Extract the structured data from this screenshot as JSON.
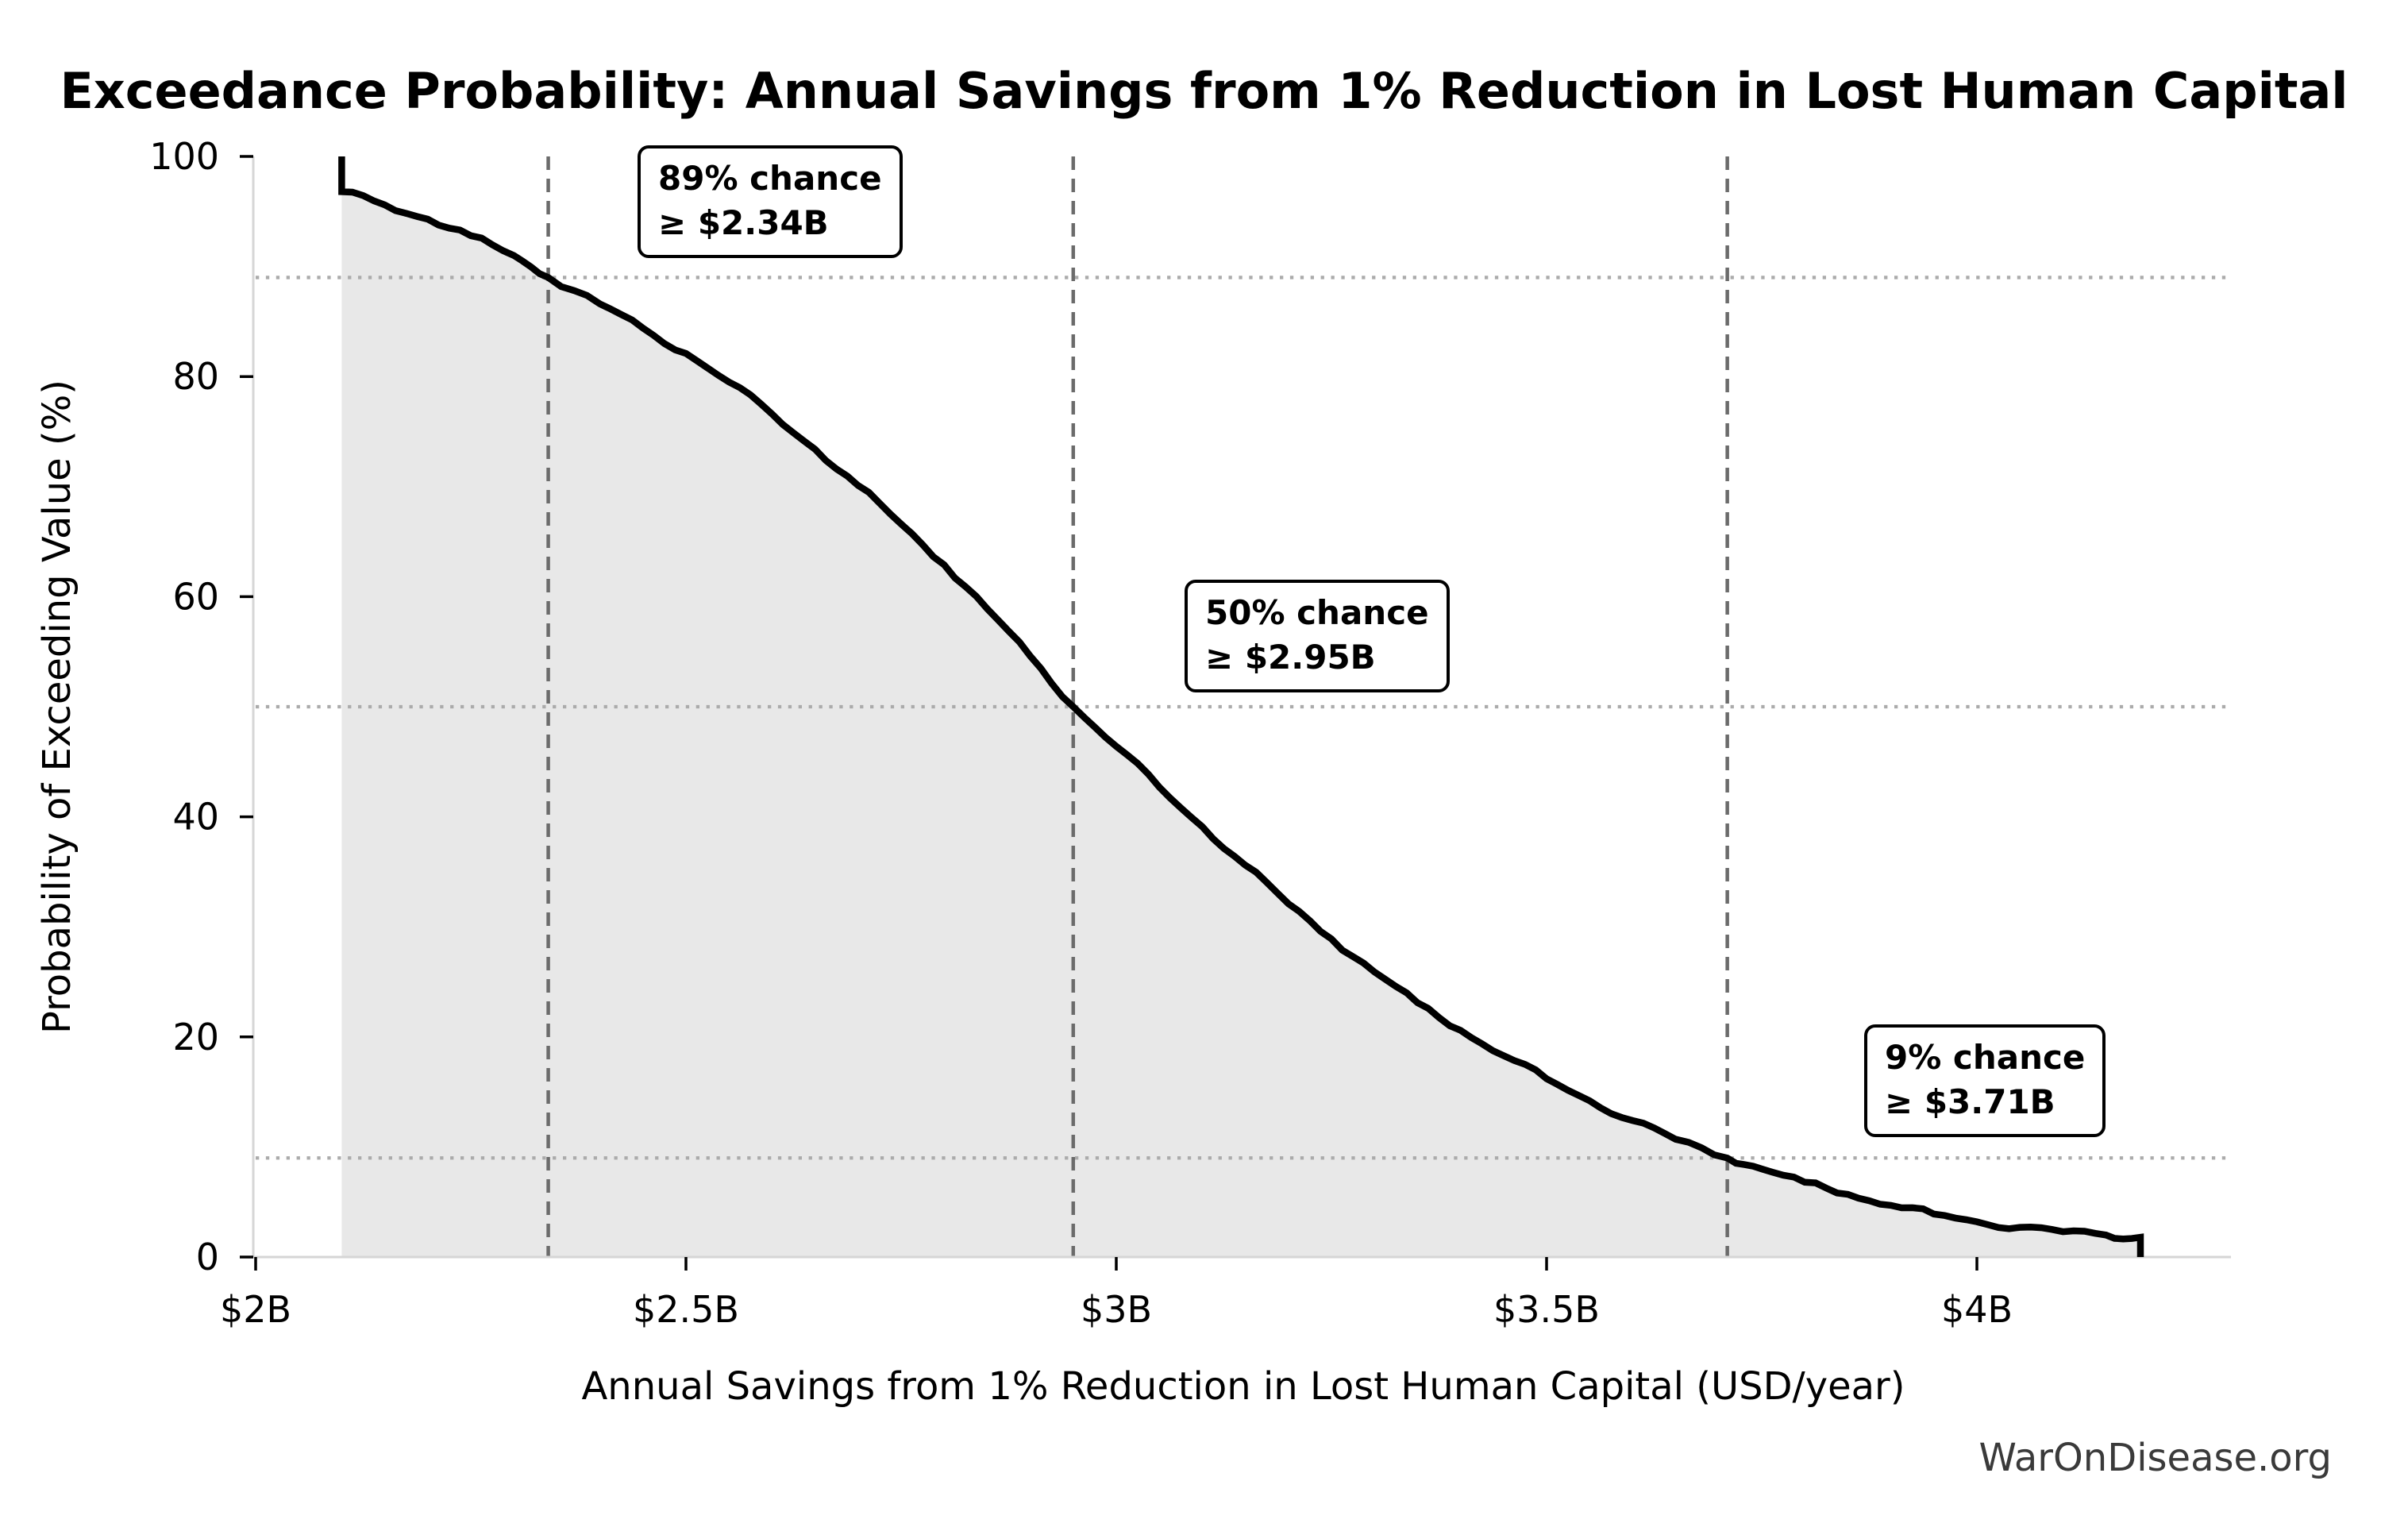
{
  "watermark": "WarOnDisease.org",
  "chart_data": {
    "type": "line",
    "subtype": "exceedance-probability-curve",
    "title": "Exceedance Probability: Annual Savings from 1% Reduction in Lost Human Capital",
    "xlabel": "Annual Savings from 1% Reduction in Lost Human Capital (USD/year)",
    "ylabel": "Probability of Exceeding Value (%)",
    "x_units": "billions USD per year",
    "xlim": [
      1.995,
      4.295
    ],
    "ylim": [
      0,
      100
    ],
    "grid": "dotted horizontal lines at threshold probabilities; dashed vertical lines at threshold values",
    "legend": false,
    "x_ticks": [
      {
        "value": 2.0,
        "label": "$2B"
      },
      {
        "value": 2.5,
        "label": "$2.5B"
      },
      {
        "value": 3.0,
        "label": "$3B"
      },
      {
        "value": 3.5,
        "label": "$3.5B"
      },
      {
        "value": 4.0,
        "label": "$4B"
      }
    ],
    "y_ticks": [
      {
        "value": 0,
        "label": "0"
      },
      {
        "value": 20,
        "label": "20"
      },
      {
        "value": 40,
        "label": "40"
      },
      {
        "value": 60,
        "label": "60"
      },
      {
        "value": 80,
        "label": "80"
      },
      {
        "value": 100,
        "label": "100"
      }
    ],
    "thresholds": [
      {
        "probability_pct": 89,
        "value_billions": 2.34,
        "label_line1": "89% chance",
        "label_line2": "≥ $2.34B"
      },
      {
        "probability_pct": 50,
        "value_billions": 2.95,
        "label_line1": "50% chance",
        "label_line2": "≥ $2.95B"
      },
      {
        "probability_pct": 9,
        "value_billions": 3.71,
        "label_line1": "9% chance",
        "label_line2": "≥ $3.71B"
      }
    ],
    "curve_points": [
      [
        2.1,
        100.0
      ],
      [
        2.1,
        96.8
      ],
      [
        2.15,
        95.6
      ],
      [
        2.2,
        94.3
      ],
      [
        2.25,
        92.8
      ],
      [
        2.3,
        91.0
      ],
      [
        2.34,
        89.0
      ],
      [
        2.4,
        86.6
      ],
      [
        2.45,
        84.4
      ],
      [
        2.5,
        82.1
      ],
      [
        2.55,
        79.5
      ],
      [
        2.6,
        76.6
      ],
      [
        2.65,
        73.4
      ],
      [
        2.7,
        70.1
      ],
      [
        2.75,
        66.6
      ],
      [
        2.8,
        62.9
      ],
      [
        2.85,
        58.9
      ],
      [
        2.9,
        54.6
      ],
      [
        2.95,
        50.0
      ],
      [
        3.0,
        46.4
      ],
      [
        3.05,
        42.7
      ],
      [
        3.1,
        39.1
      ],
      [
        3.15,
        35.6
      ],
      [
        3.2,
        32.1
      ],
      [
        3.25,
        28.9
      ],
      [
        3.3,
        25.9
      ],
      [
        3.35,
        23.1
      ],
      [
        3.4,
        20.6
      ],
      [
        3.45,
        18.3
      ],
      [
        3.5,
        16.2
      ],
      [
        3.55,
        14.2
      ],
      [
        3.6,
        12.4
      ],
      [
        3.65,
        10.7
      ],
      [
        3.71,
        9.0
      ],
      [
        3.75,
        8.0
      ],
      [
        3.8,
        6.8
      ],
      [
        3.85,
        5.7
      ],
      [
        3.9,
        4.7
      ],
      [
        3.95,
        3.9
      ],
      [
        4.0,
        3.2
      ],
      [
        4.05,
        2.7
      ],
      [
        4.1,
        2.3
      ],
      [
        4.15,
        2.0
      ],
      [
        4.19,
        1.8
      ],
      [
        4.19,
        0.0
      ]
    ],
    "colors": {
      "curve": "#000000",
      "fill": "#e8e8e8",
      "dashed_line": "#6b6b6b",
      "dotted_line": "#ababab",
      "spine": "#d6d6d6",
      "tick": "#000000",
      "watermark": "#3a3a3a"
    }
  }
}
